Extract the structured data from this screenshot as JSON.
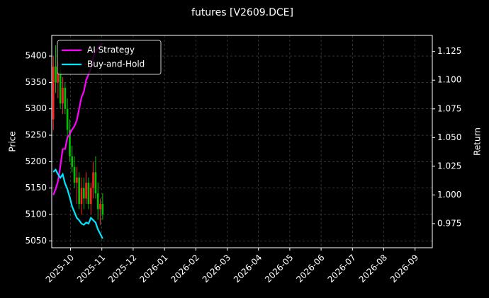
{
  "chart_data": {
    "type": "candlestick",
    "title": "futures [V2609.DCE]",
    "ylabel": "Price",
    "y2label": "Return",
    "x": [
      -0.55,
      -0.475,
      -0.4,
      -0.325,
      -0.25,
      -0.175,
      -0.1,
      -0.025,
      0.05,
      0.125,
      0.2,
      0.275,
      0.35,
      0.425,
      0.5,
      0.575,
      0.65,
      0.725,
      0.8,
      0.875,
      0.95,
      1.025
    ],
    "open": [
      5280,
      5380,
      5350,
      5370,
      5310,
      5340,
      5300,
      5260,
      5210,
      5190,
      5160,
      5170,
      5120,
      5150,
      5130,
      5160,
      5120,
      5150,
      5180,
      5140,
      5110,
      5120
    ],
    "high": [
      5400,
      5420,
      5390,
      5380,
      5360,
      5350,
      5320,
      5280,
      5230,
      5210,
      5190,
      5180,
      5170,
      5170,
      5180,
      5170,
      5160,
      5200,
      5210,
      5160,
      5130,
      5140
    ],
    "low": [
      5260,
      5330,
      5320,
      5300,
      5290,
      5290,
      5240,
      5200,
      5180,
      5150,
      5120,
      5110,
      5100,
      5110,
      5120,
      5110,
      5100,
      5130,
      5130,
      5090,
      5080,
      5090
    ],
    "close": [
      5380,
      5350,
      5370,
      5310,
      5340,
      5300,
      5260,
      5210,
      5190,
      5160,
      5170,
      5120,
      5150,
      5130,
      5160,
      5120,
      5150,
      5180,
      5140,
      5110,
      5120,
      5100
    ],
    "up_color": "#ff2020",
    "down_color": "#00c000",
    "series": [
      {
        "name": "AI Strategy",
        "color": "#ff00ff",
        "axis": "y2",
        "values": [
          1.0,
          1.005,
          1.012,
          1.025,
          1.04,
          1.04,
          1.05,
          1.053,
          1.057,
          1.06,
          1.065,
          1.075,
          1.085,
          1.09,
          1.1,
          1.105,
          1.11,
          1.12,
          1.125,
          1.128,
          1.13,
          1.132
        ]
      },
      {
        "name": "Buy-and-Hold",
        "color": "#00e5ff",
        "axis": "y2",
        "values": [
          1.02,
          1.022,
          1.018,
          1.015,
          1.018,
          1.01,
          1.005,
          0.998,
          0.99,
          0.985,
          0.98,
          0.978,
          0.975,
          0.974,
          0.976,
          0.975,
          0.98,
          0.978,
          0.976,
          0.97,
          0.966,
          0.962
        ]
      }
    ],
    "xlim": [
      -0.6,
      11.55
    ],
    "xticks": [
      {
        "value": 0,
        "label": "2025-10"
      },
      {
        "value": 1,
        "label": "2025-11"
      },
      {
        "value": 2,
        "label": "2025-12"
      },
      {
        "value": 3,
        "label": "2026-01"
      },
      {
        "value": 4,
        "label": "2026-02"
      },
      {
        "value": 5,
        "label": "2026-03"
      },
      {
        "value": 6,
        "label": "2026-04"
      },
      {
        "value": 7,
        "label": "2026-05"
      },
      {
        "value": 8,
        "label": "2026-06"
      },
      {
        "value": 9,
        "label": "2026-07"
      },
      {
        "value": 10,
        "label": "2026-08"
      },
      {
        "value": 11,
        "label": "2026-09"
      }
    ],
    "ylim": [
      5037,
      5439
    ],
    "yticks": [
      5050,
      5100,
      5150,
      5200,
      5250,
      5300,
      5350,
      5400
    ],
    "y2lim": [
      0.954,
      1.139
    ],
    "y2ticks": [
      0.975,
      {
        "value": 1.0,
        "label": "1.000"
      },
      1.025,
      {
        "value": 1.05,
        "label": "1.050"
      },
      1.075,
      {
        "value": 1.1,
        "label": "1.100"
      },
      1.125
    ],
    "grid": true,
    "legend": "upper left"
  }
}
